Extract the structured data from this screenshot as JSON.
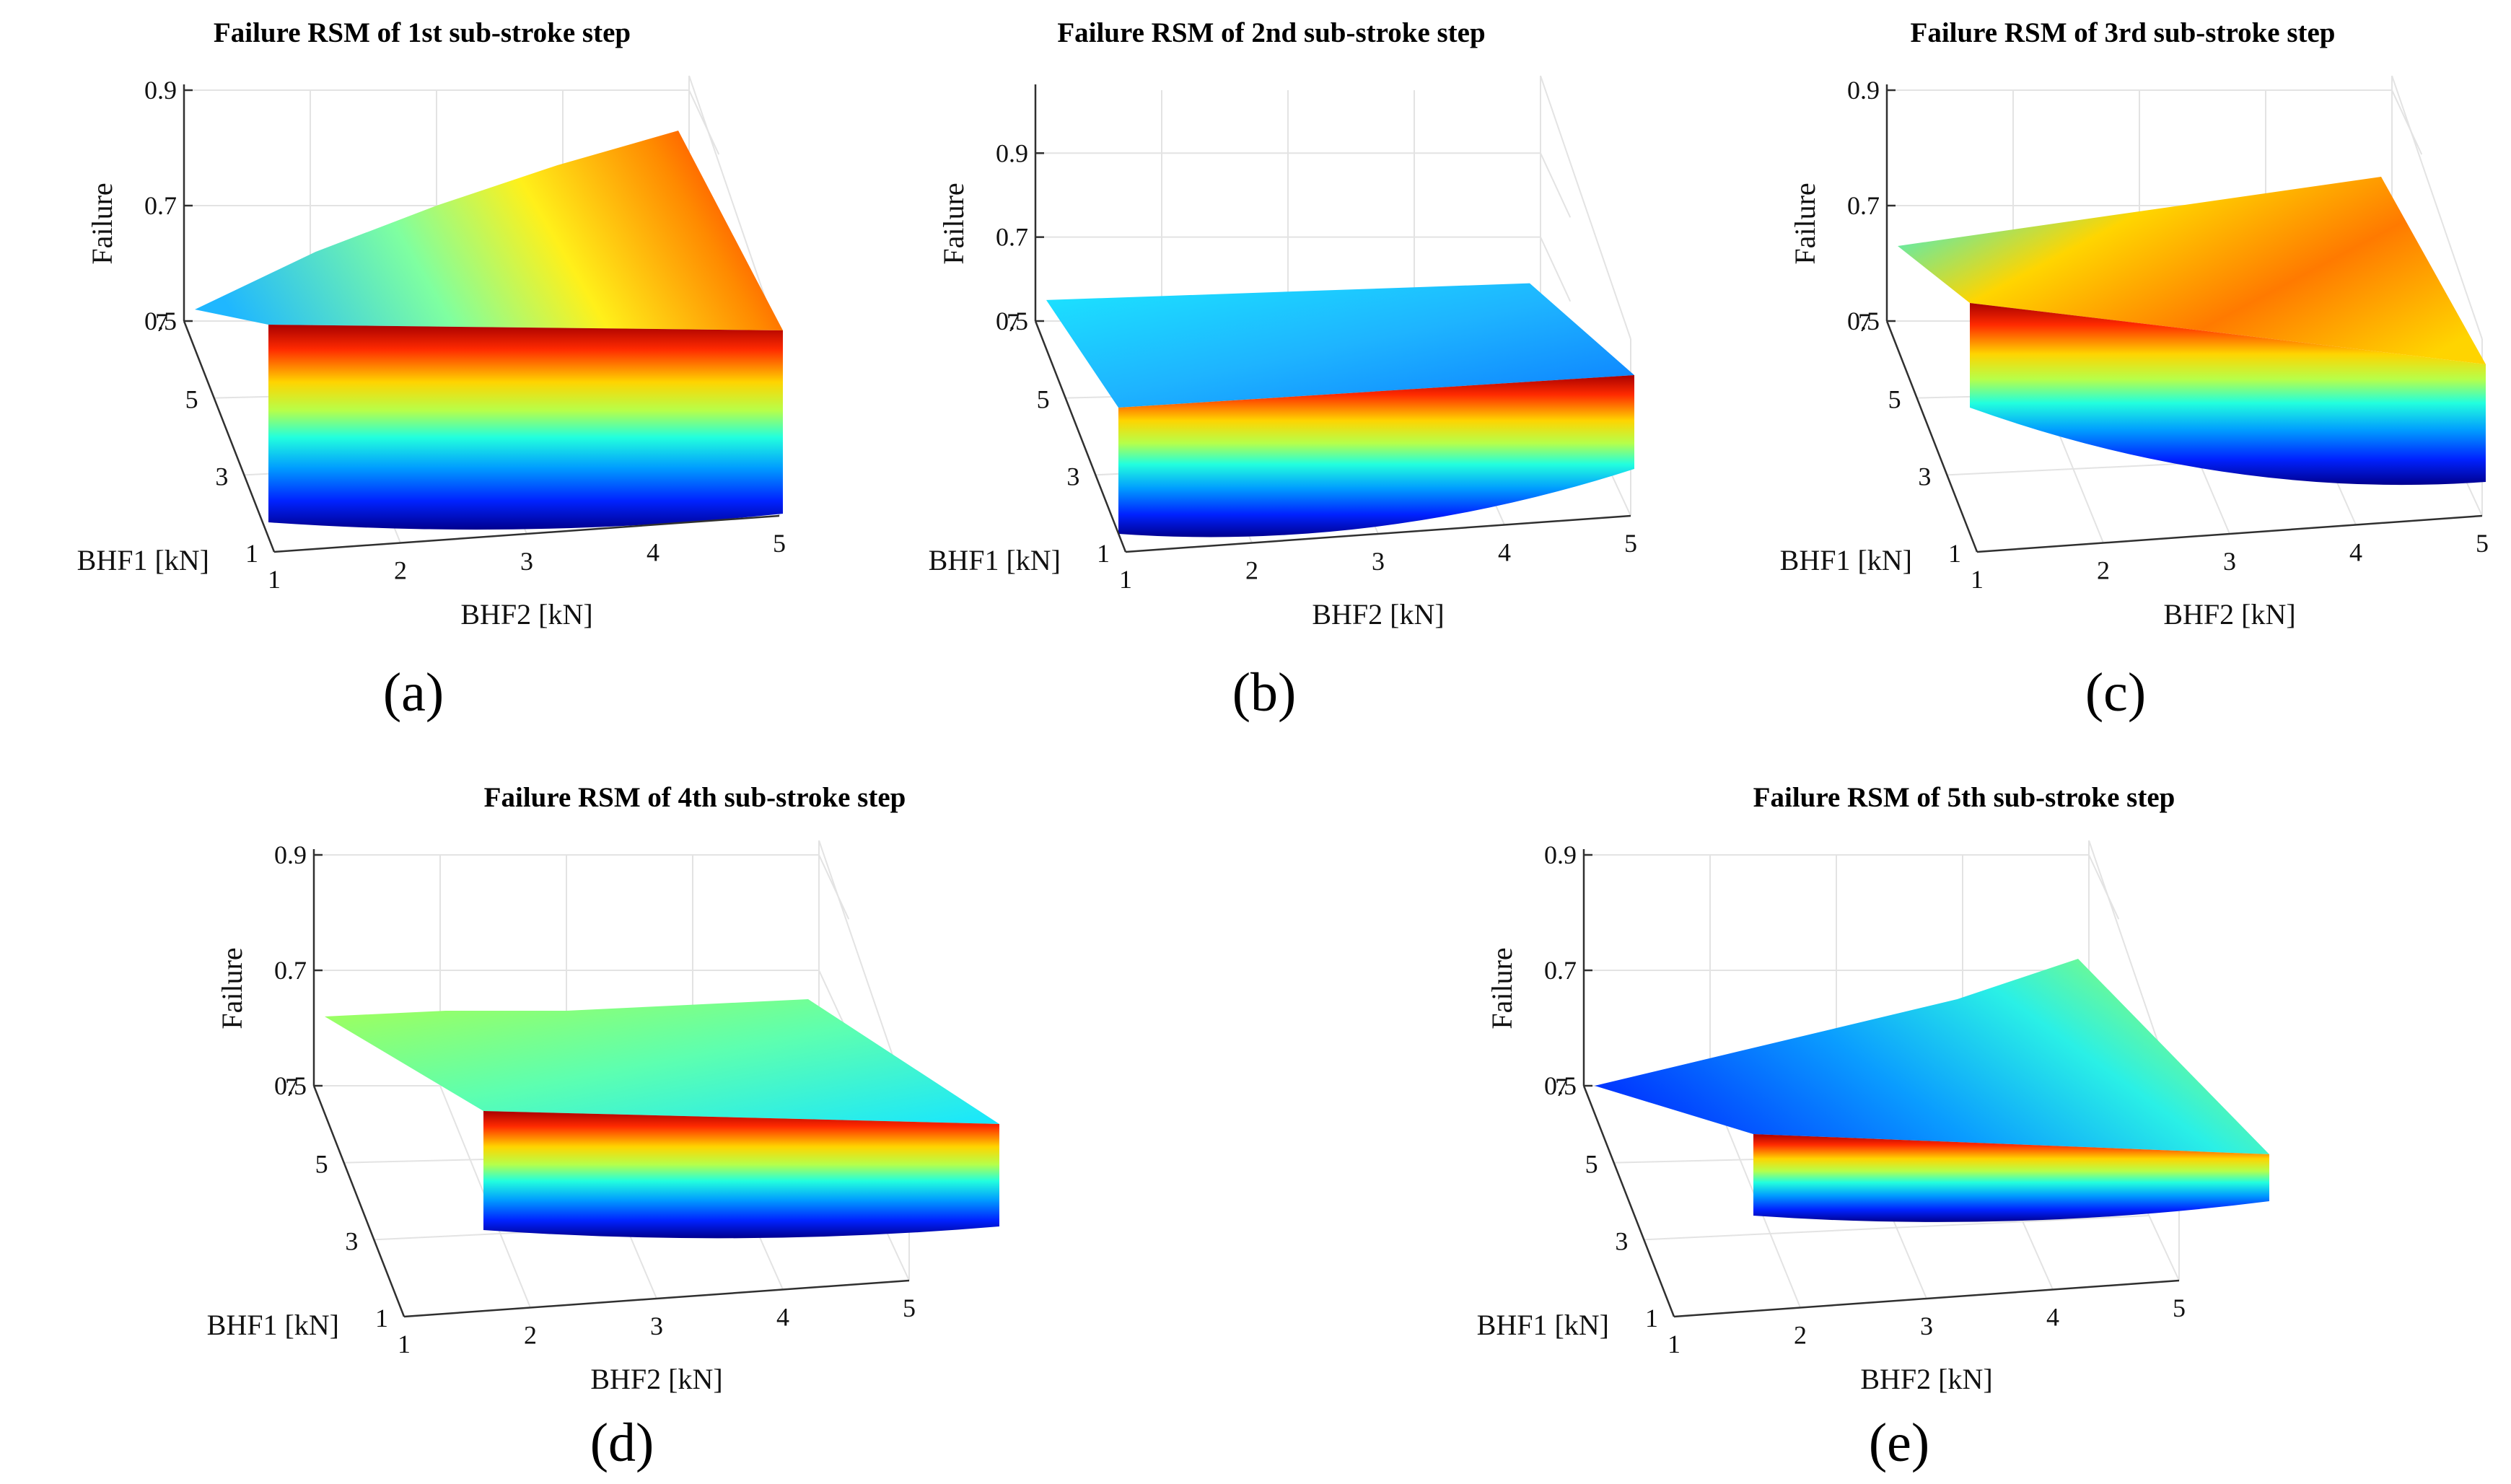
{
  "chart_data": [
    {
      "type": "surface",
      "panel_label": "(a)",
      "title": "Failure RSM of 1st sub-stroke step",
      "xlabel": "BHF2 [kN]",
      "ylabel": "BHF1 [kN]",
      "zlabel": "Failure",
      "x_ticks": [
        "1",
        "2",
        "3",
        "4",
        "5"
      ],
      "y_ticks": [
        "1",
        "3",
        "5",
        "7"
      ],
      "z_ticks": [
        "0.5",
        "0.7",
        "0.9"
      ],
      "xlim": [
        1,
        5
      ],
      "ylim": [
        1,
        7
      ],
      "zlim": [
        0.5,
        0.9
      ],
      "colormap": "jet",
      "back_edge_failure": {
        "x": [
          1,
          2,
          3,
          4,
          5
        ],
        "values": [
          0.52,
          0.62,
          0.7,
          0.77,
          0.83
        ]
      }
    },
    {
      "type": "surface",
      "panel_label": "(b)",
      "title": "Failure RSM of 2nd sub-stroke step",
      "xlabel": "BHF2 [kN]",
      "ylabel": "BHF1 [kN]",
      "zlabel": "Failure",
      "x_ticks": [
        "1",
        "2",
        "3",
        "4",
        "5"
      ],
      "y_ticks": [
        "1",
        "3",
        "5",
        "7"
      ],
      "z_ticks": [
        "0.5",
        "0.7",
        "0.9"
      ],
      "xlim": [
        1,
        5
      ],
      "ylim": [
        1,
        7
      ],
      "zlim": [
        0.5,
        1.05
      ],
      "colormap": "jet",
      "back_edge_failure": {
        "x": [
          1,
          2,
          3,
          4,
          5
        ],
        "values": [
          0.55,
          0.56,
          0.57,
          0.58,
          0.59
        ]
      }
    },
    {
      "type": "surface",
      "panel_label": "(c)",
      "title": "Failure RSM of 3rd sub-stroke step",
      "xlabel": "BHF2 [kN]",
      "ylabel": "BHF1 [kN]",
      "zlabel": "Failure",
      "x_ticks": [
        "1",
        "2",
        "3",
        "4",
        "5"
      ],
      "y_ticks": [
        "1",
        "3",
        "5",
        "7"
      ],
      "z_ticks": [
        "0.5",
        "0.7",
        "0.9"
      ],
      "xlim": [
        1,
        5
      ],
      "ylim": [
        1,
        7
      ],
      "zlim": [
        0.5,
        0.9
      ],
      "colormap": "jet",
      "back_edge_failure": {
        "x": [
          1,
          2,
          3,
          4,
          5
        ],
        "values": [
          0.63,
          0.66,
          0.69,
          0.72,
          0.75
        ]
      }
    },
    {
      "type": "surface",
      "panel_label": "(d)",
      "title": "Failure RSM of 4th sub-stroke step",
      "xlabel": "BHF2 [kN]",
      "ylabel": "BHF1 [kN]",
      "zlabel": "Failure",
      "x_ticks": [
        "1",
        "2",
        "3",
        "4",
        "5"
      ],
      "y_ticks": [
        "1",
        "3",
        "5",
        "7"
      ],
      "z_ticks": [
        "0.5",
        "0.7",
        "0.9"
      ],
      "xlim": [
        1,
        5
      ],
      "ylim": [
        1,
        7
      ],
      "zlim": [
        0.5,
        0.9
      ],
      "colormap": "jet",
      "back_edge_failure": {
        "x": [
          1,
          2,
          3,
          4,
          5
        ],
        "values": [
          0.62,
          0.63,
          0.63,
          0.64,
          0.65
        ]
      }
    },
    {
      "type": "surface",
      "panel_label": "(e)",
      "title": "Failure RSM of 5th sub-stroke step",
      "xlabel": "BHF2 [kN]",
      "ylabel": "BHF1 [kN]",
      "zlabel": "Failure",
      "x_ticks": [
        "1",
        "2",
        "3",
        "4",
        "5"
      ],
      "y_ticks": [
        "1",
        "3",
        "5",
        "7"
      ],
      "z_ticks": [
        "0.5",
        "0.7",
        "0.9"
      ],
      "xlim": [
        1,
        5
      ],
      "ylim": [
        1,
        7
      ],
      "zlim": [
        0.5,
        0.9
      ],
      "colormap": "jet",
      "back_edge_failure": {
        "x": [
          1,
          2,
          3,
          4,
          5
        ],
        "values": [
          0.5,
          0.55,
          0.6,
          0.65,
          0.72
        ]
      }
    }
  ]
}
